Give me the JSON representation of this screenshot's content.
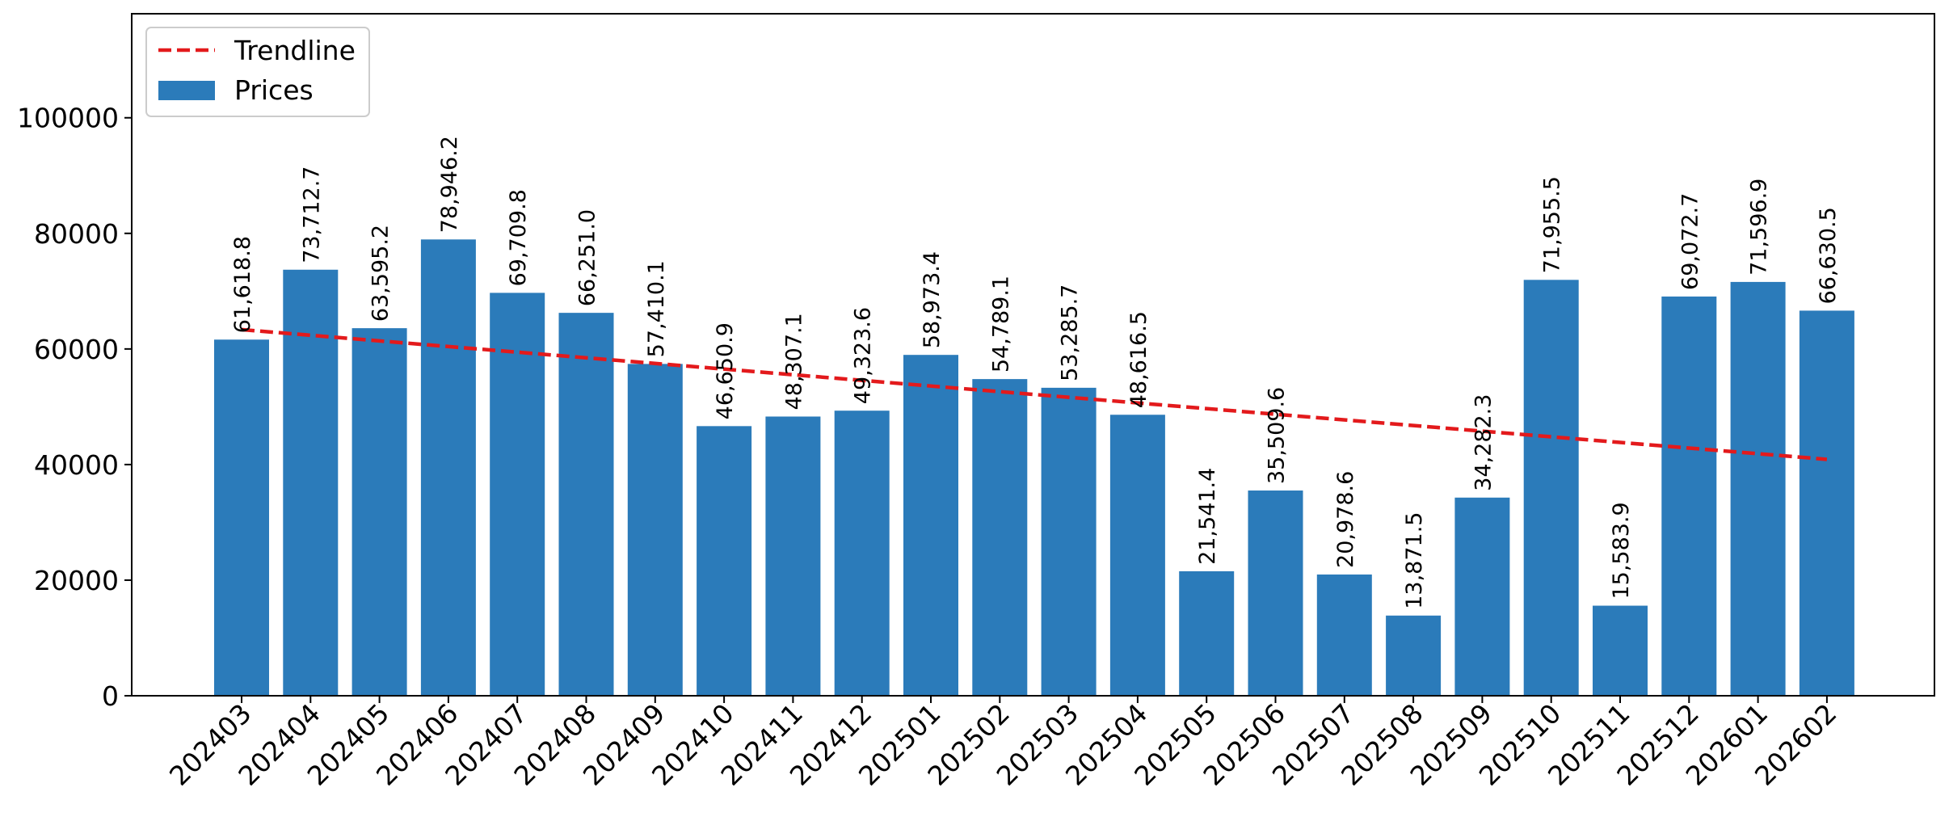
{
  "chart_data": {
    "type": "bar",
    "title": "",
    "xlabel": "",
    "ylabel": "",
    "categories": [
      "202403",
      "202404",
      "202405",
      "202406",
      "202407",
      "202408",
      "202409",
      "202410",
      "202411",
      "202412",
      "202501",
      "202502",
      "202503",
      "202504",
      "202505",
      "202506",
      "202507",
      "202508",
      "202509",
      "202510",
      "202511",
      "202512",
      "202601",
      "202602"
    ],
    "series": [
      {
        "name": "Prices",
        "color": "#2b7bba",
        "values": [
          61618.8,
          73712.7,
          63595.2,
          78946.2,
          69709.8,
          66251.0,
          57410.1,
          46650.9,
          48307.1,
          49323.6,
          58973.4,
          54789.1,
          53285.7,
          48616.5,
          21541.4,
          35509.6,
          20978.6,
          13871.5,
          34282.3,
          71955.5,
          15583.9,
          69072.7,
          71596.9,
          66630.5
        ],
        "value_labels": [
          "61,618.8",
          "73,712.7",
          "63,595.2",
          "78,946.2",
          "69,709.8",
          "66,251.0",
          "57,410.1",
          "46,650.9",
          "48,307.1",
          "49,323.6",
          "58,973.4",
          "54,789.1",
          "53,285.7",
          "48,616.5",
          "21,541.4",
          "35,509.6",
          "20,978.6",
          "13,871.5",
          "34,282.3",
          "71,955.5",
          "15,583.9",
          "69,072.7",
          "71,596.9",
          "66,630.5"
        ]
      }
    ],
    "trendline": {
      "name": "Trendline",
      "color": "#e31a1c",
      "style": "dashed",
      "start_value": 63350,
      "end_value": 40900
    },
    "ylim": [
      0,
      118000
    ],
    "yticks": [
      0,
      20000,
      40000,
      60000,
      80000,
      100000
    ],
    "ytick_labels": [
      "0",
      "20000",
      "40000",
      "60000",
      "80000",
      "100000"
    ],
    "grid": false,
    "legend": {
      "placement": "top-left",
      "entries": [
        "Trendline",
        "Prices"
      ]
    }
  }
}
